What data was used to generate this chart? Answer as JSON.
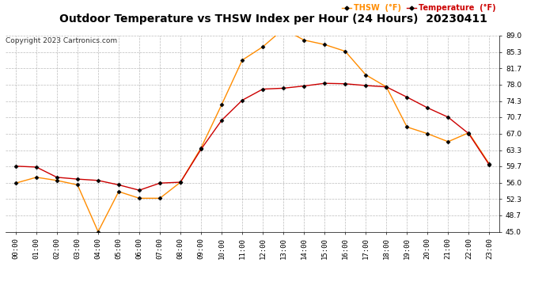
{
  "title": "Outdoor Temperature vs THSW Index per Hour (24 Hours)  20230411",
  "copyright": "Copyright 2023 Cartronics.com",
  "x_labels": [
    "00:00",
    "01:00",
    "02:00",
    "03:00",
    "04:00",
    "05:00",
    "06:00",
    "07:00",
    "08:00",
    "09:00",
    "10:00",
    "11:00",
    "12:00",
    "13:00",
    "14:00",
    "15:00",
    "16:00",
    "17:00",
    "18:00",
    "19:00",
    "20:00",
    "21:00",
    "22:00",
    "23:00"
  ],
  "temperature": [
    59.7,
    59.5,
    57.2,
    56.8,
    56.5,
    55.5,
    54.3,
    55.9,
    56.1,
    63.5,
    70.0,
    74.5,
    77.0,
    77.2,
    77.7,
    78.3,
    78.2,
    77.8,
    77.5,
    75.2,
    72.8,
    70.7,
    67.0,
    60.0
  ],
  "thsw": [
    55.9,
    57.2,
    56.5,
    55.5,
    45.0,
    54.0,
    52.5,
    52.5,
    56.1,
    63.8,
    73.5,
    83.5,
    86.5,
    90.5,
    88.0,
    87.0,
    85.5,
    80.2,
    77.5,
    68.5,
    67.0,
    65.2,
    67.2,
    60.2
  ],
  "ylim": [
    45.0,
    89.0
  ],
  "yticks": [
    45.0,
    48.7,
    52.3,
    56.0,
    59.7,
    63.3,
    67.0,
    70.7,
    74.3,
    78.0,
    81.7,
    85.3,
    89.0
  ],
  "temp_color": "#cc0000",
  "thsw_color": "#ff8c00",
  "marker": "D",
  "marker_size": 2.5,
  "marker_color": "#000000",
  "background_color": "#ffffff",
  "grid_color": "#aaaaaa",
  "title_fontsize": 10,
  "copyright_fontsize": 6.5,
  "tick_fontsize": 6.5,
  "legend_thsw": "THSW  (°F)",
  "legend_temp": "Temperature  (°F)"
}
